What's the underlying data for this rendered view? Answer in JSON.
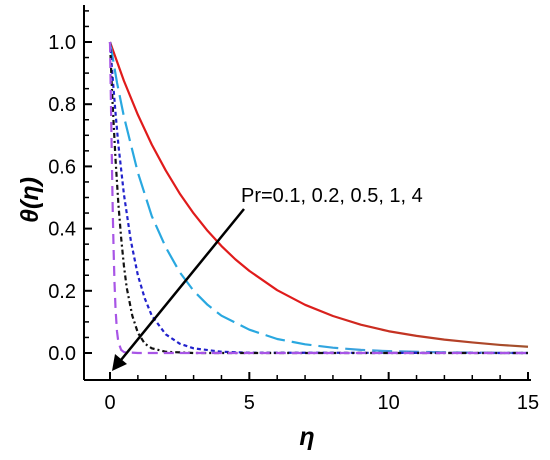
{
  "chart_data": {
    "type": "line",
    "title": "",
    "xlabel": "η",
    "ylabel": "θ(η)",
    "xlim": [
      0,
      15
    ],
    "ylim": [
      0,
      1.1
    ],
    "x_ticks": [
      "0",
      "5",
      "10",
      "15"
    ],
    "y_ticks": [
      "0.0",
      "0.2",
      "0.4",
      "0.6",
      "0.8",
      "1.0"
    ],
    "grid": false,
    "legend": "none",
    "annotation": "Pr=0.1, 0.2, 0.5, 1, 4",
    "series": [
      {
        "color": "#e01b1b",
        "color_end": "#a0522d",
        "dash": "solid",
        "points": [
          [
            0,
            1.0
          ],
          [
            0.5,
            0.875
          ],
          [
            1,
            0.766
          ],
          [
            1.5,
            0.67
          ],
          [
            2,
            0.587
          ],
          [
            2.5,
            0.513
          ],
          [
            3,
            0.449
          ],
          [
            3.5,
            0.393
          ],
          [
            4,
            0.344
          ],
          [
            4.5,
            0.301
          ],
          [
            5,
            0.264
          ],
          [
            6,
            0.202
          ],
          [
            7,
            0.155
          ],
          [
            8,
            0.119
          ],
          [
            9,
            0.091
          ],
          [
            10,
            0.07
          ],
          [
            11,
            0.055
          ],
          [
            12,
            0.043
          ],
          [
            13,
            0.034
          ],
          [
            14,
            0.026
          ],
          [
            15,
            0.02
          ]
        ]
      },
      {
        "color": "#29a8e0",
        "color_end": "#6f8fd8",
        "dash": "longdash",
        "points": [
          [
            0,
            1.0
          ],
          [
            0.25,
            0.87
          ],
          [
            0.5,
            0.76
          ],
          [
            1,
            0.58
          ],
          [
            1.5,
            0.44
          ],
          [
            2,
            0.34
          ],
          [
            2.5,
            0.26
          ],
          [
            3,
            0.2
          ],
          [
            3.5,
            0.155
          ],
          [
            4,
            0.12
          ],
          [
            5,
            0.075
          ],
          [
            6,
            0.045
          ],
          [
            7,
            0.028
          ],
          [
            8,
            0.017
          ],
          [
            9,
            0.01
          ],
          [
            10,
            0.006
          ],
          [
            12,
            0.002
          ],
          [
            15,
            0.0
          ]
        ]
      },
      {
        "color": "#2222cc",
        "dash": "shortdash",
        "points": [
          [
            0,
            1.0
          ],
          [
            0.1,
            0.88
          ],
          [
            0.2,
            0.77
          ],
          [
            0.3,
            0.67
          ],
          [
            0.5,
            0.51
          ],
          [
            0.75,
            0.36
          ],
          [
            1,
            0.25
          ],
          [
            1.25,
            0.175
          ],
          [
            1.5,
            0.12
          ],
          [
            2,
            0.06
          ],
          [
            2.5,
            0.03
          ],
          [
            3,
            0.015
          ],
          [
            4,
            0.004
          ],
          [
            5,
            0.001
          ],
          [
            15,
            0.0
          ]
        ]
      },
      {
        "color": "#111111",
        "dash": "dashdot",
        "points": [
          [
            0,
            1.0
          ],
          [
            0.05,
            0.89
          ],
          [
            0.1,
            0.79
          ],
          [
            0.2,
            0.62
          ],
          [
            0.3,
            0.48
          ],
          [
            0.4,
            0.37
          ],
          [
            0.5,
            0.28
          ],
          [
            0.6,
            0.21
          ],
          [
            0.8,
            0.12
          ],
          [
            1,
            0.065
          ],
          [
            1.25,
            0.03
          ],
          [
            1.5,
            0.015
          ],
          [
            2,
            0.004
          ],
          [
            3,
            0.0
          ],
          [
            15,
            0.0
          ]
        ]
      },
      {
        "color": "#a855e6",
        "dash": "mediumdash",
        "points": [
          [
            0,
            1.0
          ],
          [
            0.02,
            0.88
          ],
          [
            0.04,
            0.77
          ],
          [
            0.06,
            0.66
          ],
          [
            0.08,
            0.55
          ],
          [
            0.1,
            0.45
          ],
          [
            0.13,
            0.33
          ],
          [
            0.16,
            0.23
          ],
          [
            0.2,
            0.14
          ],
          [
            0.25,
            0.07
          ],
          [
            0.3,
            0.035
          ],
          [
            0.4,
            0.01
          ],
          [
            0.5,
            0.003
          ],
          [
            1,
            0.0
          ],
          [
            15,
            0.0
          ]
        ]
      }
    ]
  }
}
